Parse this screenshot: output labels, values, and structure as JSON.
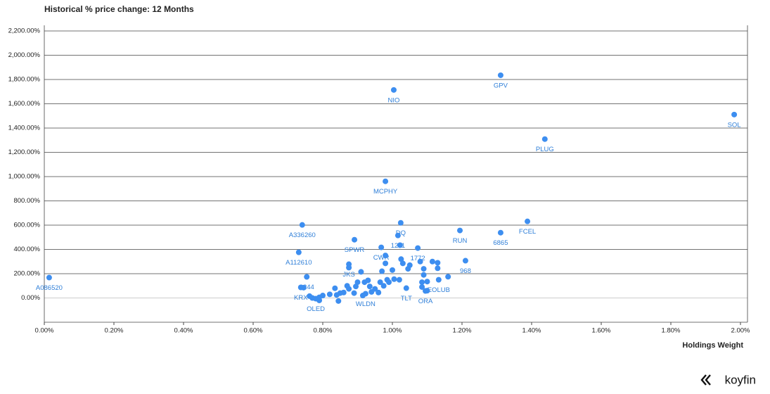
{
  "chart_data": {
    "type": "scatter",
    "title": "Historical % price change: 12 Months",
    "x_label": "Holdings Weight",
    "brand": "koyfin",
    "color": "#3d8ef0",
    "x": [
      0.014,
      1.311,
      1.004,
      1.982,
      1.438,
      0.98,
      0.741,
      1.024,
      1.388,
      1.016,
      0.891,
      1.194,
      1.311,
      0.968,
      1.073,
      0.731,
      0.875,
      1.21,
      0.754,
      0.737,
      0.78,
      0.923,
      1.04,
      1.095,
      1.133,
      0.745,
      0.762,
      0.77,
      0.79,
      0.8,
      0.79,
      0.82,
      0.835,
      0.84,
      0.85,
      0.845,
      0.86,
      0.87,
      0.875,
      0.875,
      0.89,
      0.895,
      0.9,
      0.91,
      0.915,
      0.92,
      0.93,
      0.935,
      0.94,
      0.95,
      0.96,
      0.965,
      0.97,
      0.975,
      0.98,
      0.98,
      0.985,
      0.99,
      1.0,
      1.005,
      1.02,
      1.022,
      1.025,
      1.03,
      1.045,
      1.05,
      1.08,
      1.085,
      1.09,
      1.1,
      1.1,
      1.115,
      1.13,
      1.13,
      1.16,
      1.085,
      1.09
    ],
    "values": [
      168,
      1835,
      1714,
      1511,
      1309,
      961,
      602,
      619,
      631,
      515,
      480,
      556,
      538,
      417,
      411,
      376,
      278,
      307,
      174,
      87,
      -6,
      35,
      81,
      58,
      150,
      85,
      15,
      0,
      5,
      20,
      -20,
      30,
      80,
      25,
      40,
      -25,
      45,
      100,
      75,
      250,
      40,
      95,
      130,
      215,
      20,
      130,
      145,
      95,
      50,
      75,
      45,
      130,
      220,
      100,
      285,
      350,
      150,
      130,
      230,
      155,
      150,
      435,
      320,
      285,
      240,
      270,
      300,
      130,
      240,
      135,
      60,
      300,
      290,
      245,
      175,
      90,
      190
    ],
    "labels": [
      "A086520",
      "GPV",
      "NIO",
      "SOL",
      "PLUG",
      "MCPHY",
      "A336260",
      "DQ",
      "FCEL",
      "1211",
      "SPWR",
      "RUN",
      "6865",
      "CWR",
      "1772",
      "A112610",
      "JKS",
      "968",
      "6244",
      "KRX",
      "OLED",
      "WLDN",
      "TLT",
      "ORA",
      "EOLUB",
      null,
      null,
      null,
      null,
      null,
      null,
      null,
      null,
      null,
      null,
      null,
      null,
      null,
      null,
      null,
      null,
      null,
      null,
      null,
      null,
      null,
      null,
      null,
      null,
      null,
      null,
      null,
      null,
      null,
      null,
      null,
      null,
      null,
      null,
      null,
      null,
      null,
      null,
      null,
      null,
      null,
      null,
      null,
      null,
      null,
      null,
      null,
      null,
      null,
      null,
      null,
      null
    ],
    "xlim": [
      0,
      2.0
    ],
    "xticks": [
      {
        "value": 0,
        "label": "0.00%"
      },
      {
        "value": 0.2,
        "label": "0.20%"
      },
      {
        "value": 0.4,
        "label": "0.40%"
      },
      {
        "value": 0.6,
        "label": "0.60%"
      },
      {
        "value": 0.8,
        "label": "0.80%"
      },
      {
        "value": 1.0,
        "label": "1.00%"
      },
      {
        "value": 1.2,
        "label": "1.20%"
      },
      {
        "value": 1.4,
        "label": "1.40%"
      },
      {
        "value": 1.6,
        "label": "1.60%"
      },
      {
        "value": 1.8,
        "label": "1.80%"
      },
      {
        "value": 2.0,
        "label": "2.00%"
      }
    ],
    "ylim": [
      -200,
      2200
    ],
    "yticks": [
      {
        "value": 0,
        "label": "0.00%"
      },
      {
        "value": 200,
        "label": "200.00%"
      },
      {
        "value": 400,
        "label": "400.00%"
      },
      {
        "value": 600,
        "label": "600.00%"
      },
      {
        "value": 800,
        "label": "800.00%"
      },
      {
        "value": 1000,
        "label": "1,000.00%"
      },
      {
        "value": 1200,
        "label": "1,200.00%"
      },
      {
        "value": 1400,
        "label": "1,400.00%"
      },
      {
        "value": 1600,
        "label": "1,600.00%"
      },
      {
        "value": 1800,
        "label": "1,800.00%"
      },
      {
        "value": 2000,
        "label": "2,000.00%"
      },
      {
        "value": 2200,
        "label": "2,200.00%"
      }
    ],
    "grid": true
  }
}
